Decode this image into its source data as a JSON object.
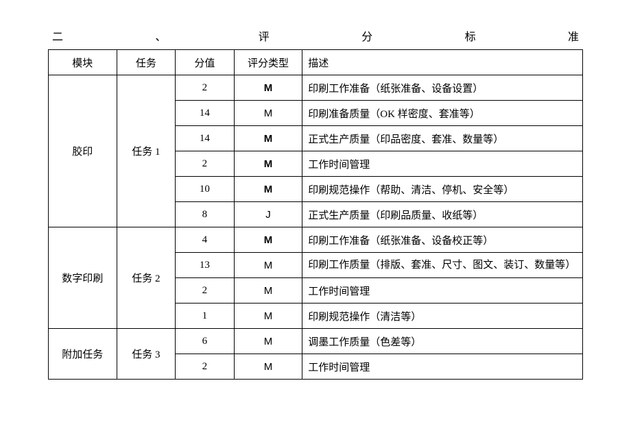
{
  "title": {
    "c1": "二",
    "c2": "、",
    "c3": "评",
    "c4": "分",
    "c5": "标",
    "c6": "准"
  },
  "headers": {
    "module": "模块",
    "task": "任务",
    "score": "分值",
    "type": "评分类型",
    "desc": "描述"
  },
  "rows": [
    {
      "module": "胶印",
      "task": "任务 1",
      "score": "2",
      "type": "M",
      "type_bold": true,
      "desc": "印刷工作准备（纸张准备、设备设置）"
    },
    {
      "score": "14",
      "type": "M",
      "type_bold": false,
      "desc": "印刷准备质量（OK 样密度、套准等）"
    },
    {
      "score": "14",
      "type": "M",
      "type_bold": true,
      "desc": "正式生产质量（印品密度、套准、数量等）"
    },
    {
      "score": "2",
      "type": "M",
      "type_bold": true,
      "desc": "工作时间管理"
    },
    {
      "score": "10",
      "type": "M",
      "type_bold": true,
      "desc": "印刷规范操作（帮助、清洁、停机、安全等）"
    },
    {
      "score": "8",
      "type": "J",
      "type_bold": false,
      "desc": "正式生产质量（印刷品质量、收纸等）"
    },
    {
      "module": "数字印刷",
      "task": "任务 2",
      "score": "4",
      "type": "M",
      "type_bold": true,
      "desc": "印刷工作准备（纸张准备、设备校正等）"
    },
    {
      "score": "13",
      "type": "M",
      "type_bold": false,
      "desc": "印刷工作质量（排版、套准、尺寸、图文、装订、数量等）"
    },
    {
      "score": "2",
      "type": "M",
      "type_bold": false,
      "desc": "工作时间管理"
    },
    {
      "score": "1",
      "type": "M",
      "type_bold": false,
      "desc": "印刷规范操作（清洁等）"
    },
    {
      "module": "附加任务",
      "task": "任务 3",
      "score": "6",
      "type": "M",
      "type_bold": false,
      "desc": "调墨工作质量（色差等）"
    },
    {
      "score": "2",
      "type": "M",
      "type_bold": false,
      "desc": "工作时间管理"
    }
  ]
}
